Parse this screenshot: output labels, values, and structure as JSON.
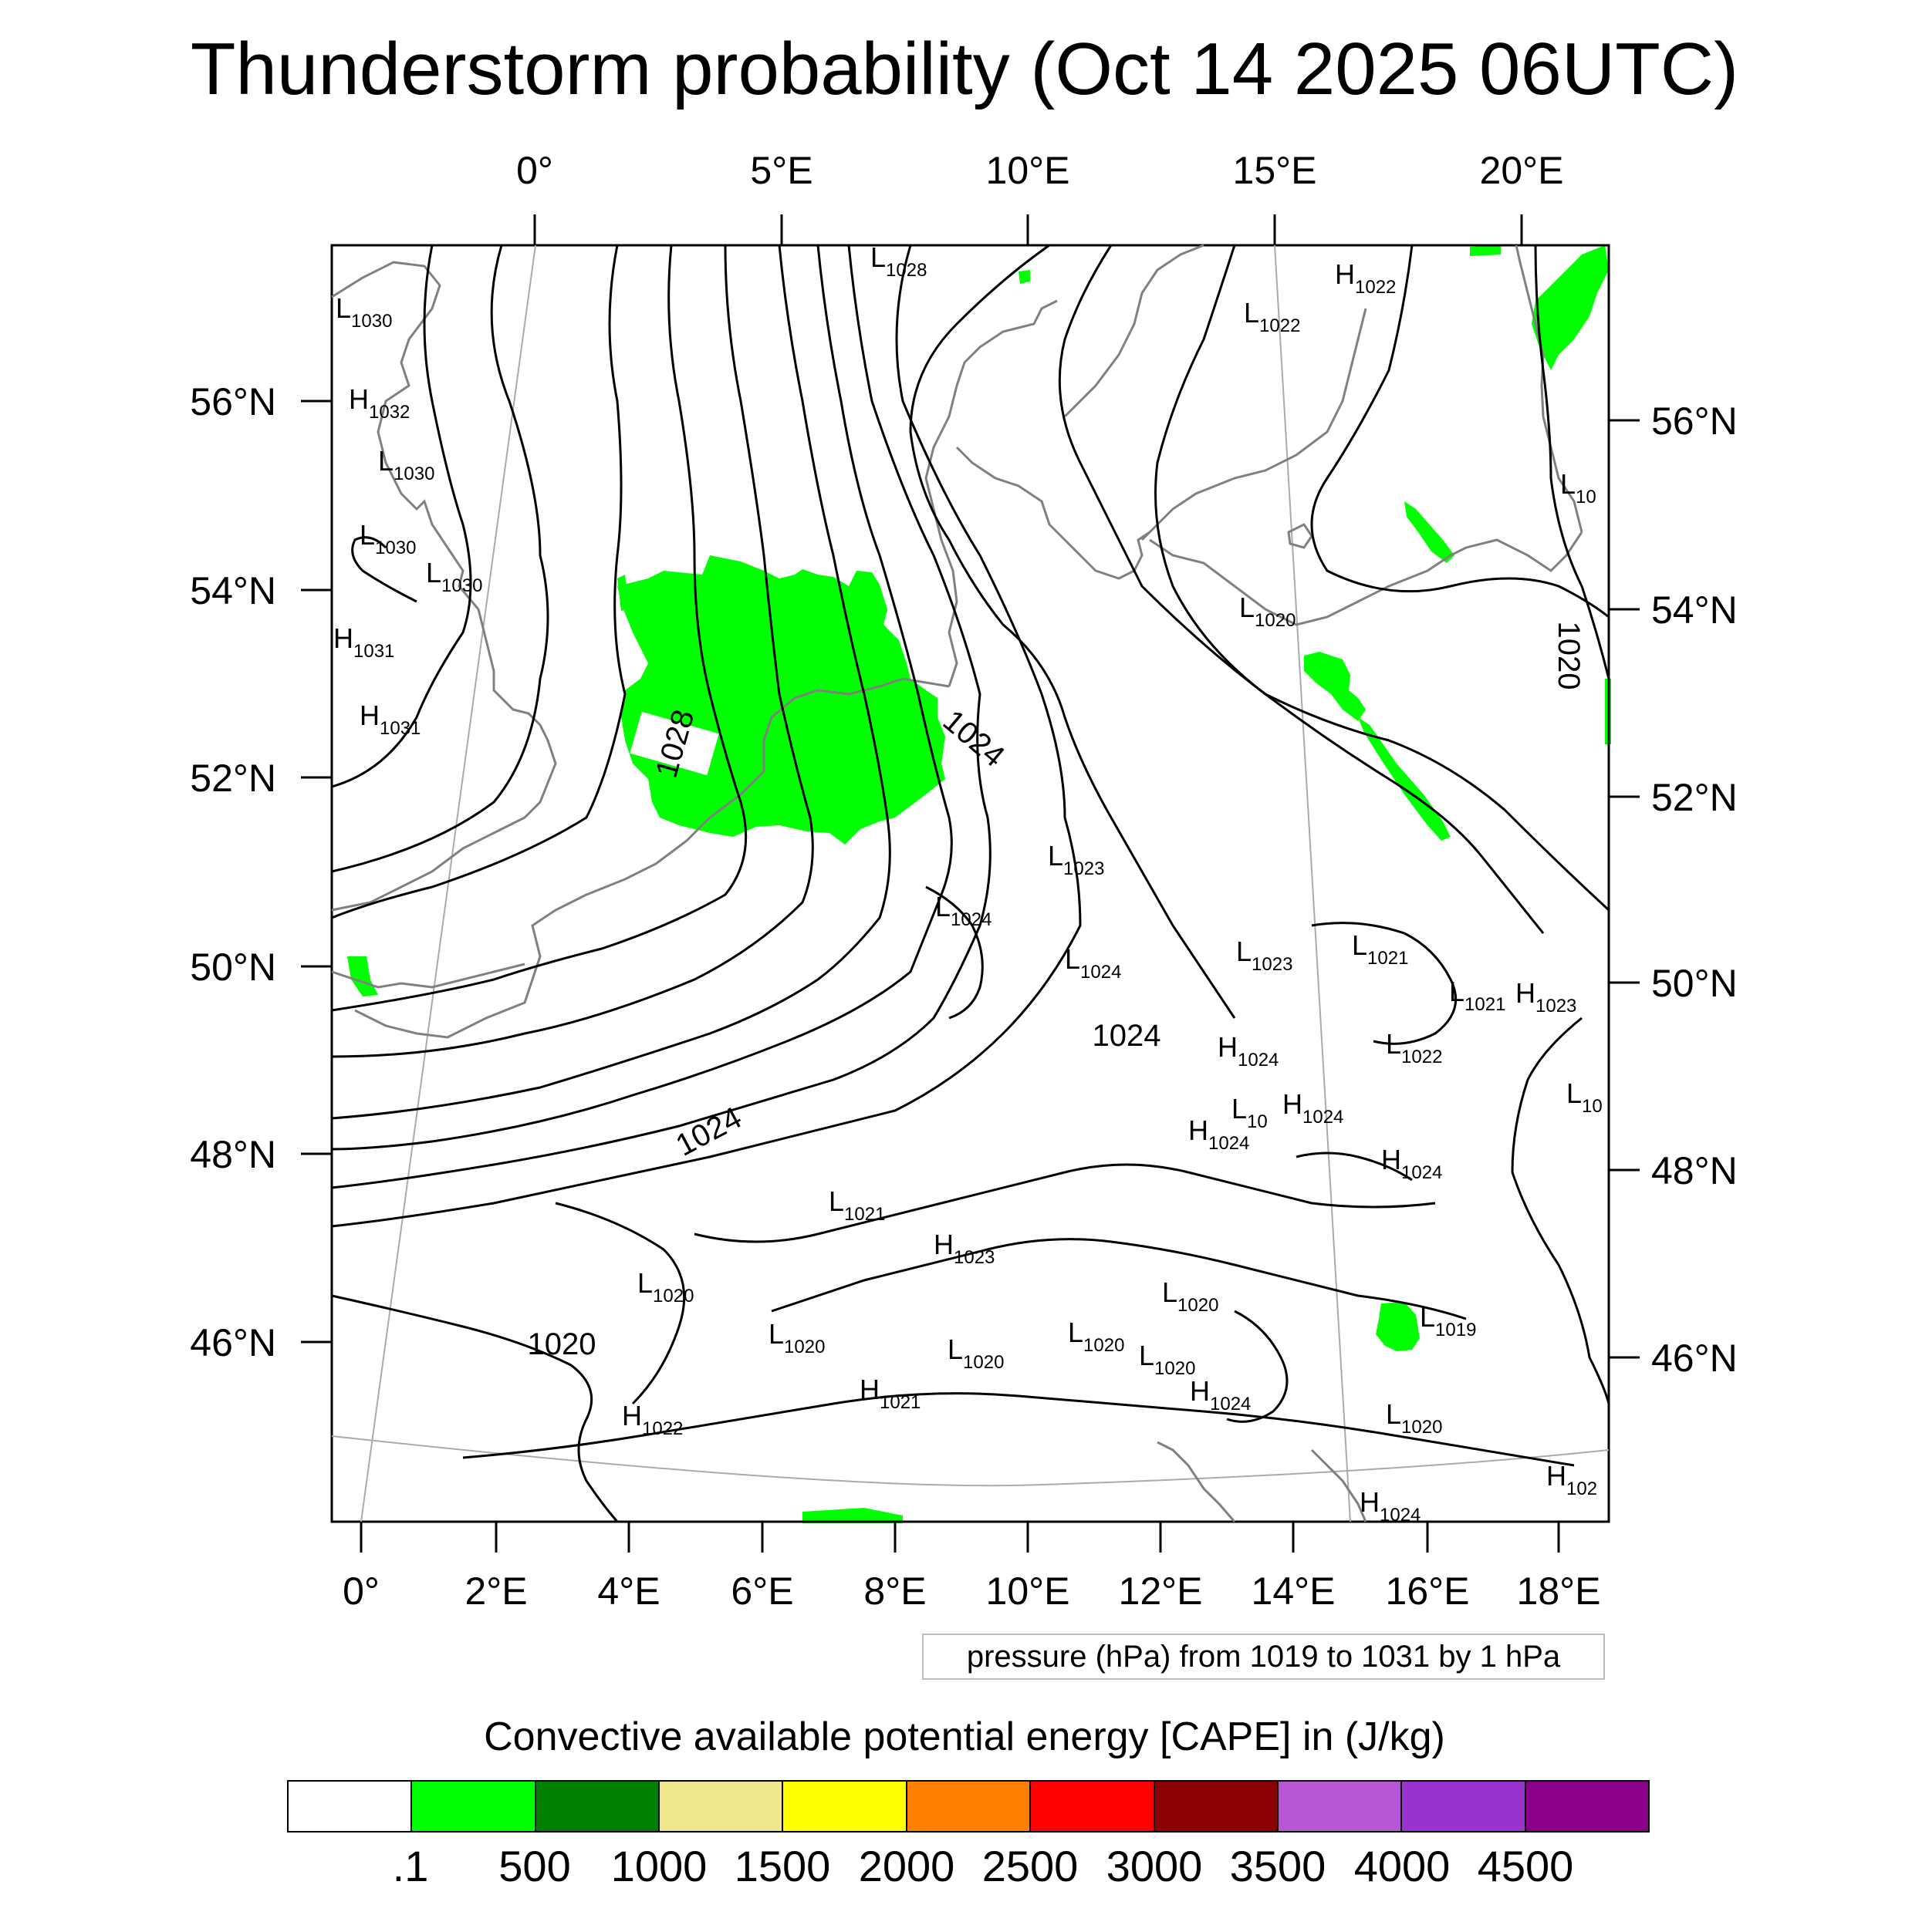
{
  "title": "Thunderstorm probability (Oct 14 2025 06UTC)",
  "top_lon_labels": [
    "0°",
    "5°E",
    "10°E",
    "15°E",
    "20°E"
  ],
  "bottom_lon_labels": [
    "0°",
    "2°E",
    "4°E",
    "6°E",
    "8°E",
    "10°E",
    "12°E",
    "14°E",
    "16°E",
    "18°E"
  ],
  "left_lat_labels": [
    "56°N",
    "54°N",
    "52°N",
    "50°N",
    "48°N",
    "46°N"
  ],
  "right_lat_labels": [
    "56°N",
    "54°N",
    "52°N",
    "50°N",
    "48°N",
    "46°N"
  ],
  "contour_labels": [
    "1028",
    "1024",
    "1024",
    "1024",
    "1020",
    "1020"
  ],
  "pressure_centers": [
    {
      "kind": "L",
      "value": "1030"
    },
    {
      "kind": "H",
      "value": "1032"
    },
    {
      "kind": "L",
      "value": "1030"
    },
    {
      "kind": "L",
      "value": "1030"
    },
    {
      "kind": "L",
      "value": "1030"
    },
    {
      "kind": "H",
      "value": "1031"
    },
    {
      "kind": "H",
      "value": "1031"
    },
    {
      "kind": "L",
      "value": "1028"
    },
    {
      "kind": "H",
      "value": "1022"
    },
    {
      "kind": "L",
      "value": "1022"
    },
    {
      "kind": "L",
      "value": "10"
    },
    {
      "kind": "L",
      "value": "1020"
    },
    {
      "kind": "L",
      "value": "1023"
    },
    {
      "kind": "L",
      "value": "1024"
    },
    {
      "kind": "L",
      "value": "1024"
    },
    {
      "kind": "L",
      "value": "1023"
    },
    {
      "kind": "L",
      "value": "1021"
    },
    {
      "kind": "L",
      "value": "1021"
    },
    {
      "kind": "H",
      "value": "1023"
    },
    {
      "kind": "H",
      "value": "1024"
    },
    {
      "kind": "L",
      "value": "1022"
    },
    {
      "kind": "L",
      "value": "10"
    },
    {
      "kind": "L",
      "value": "10"
    },
    {
      "kind": "H",
      "value": "1024"
    },
    {
      "kind": "H",
      "value": "1024"
    },
    {
      "kind": "H",
      "value": "1024"
    },
    {
      "kind": "L",
      "value": "1021"
    },
    {
      "kind": "H",
      "value": "1023"
    },
    {
      "kind": "L",
      "value": "1020"
    },
    {
      "kind": "L",
      "value": "1020"
    },
    {
      "kind": "L",
      "value": "1020"
    },
    {
      "kind": "L",
      "value": "1020"
    },
    {
      "kind": "L",
      "value": "1020"
    },
    {
      "kind": "L",
      "value": "1020"
    },
    {
      "kind": "H",
      "value": "1024"
    },
    {
      "kind": "L",
      "value": "1019"
    },
    {
      "kind": "H",
      "value": "1022"
    },
    {
      "kind": "H",
      "value": "1021"
    },
    {
      "kind": "H",
      "value": "1024"
    },
    {
      "kind": "L",
      "value": "1020"
    },
    {
      "kind": "H",
      "value": "102"
    }
  ],
  "pressure_note": "pressure (hPa) from 1019 to 1031 by 1 hPa",
  "cape_title": "Convective available potential energy [CAPE] in (J/kg)",
  "colorbar": {
    "colors": [
      "#ffffff",
      "#00ff00",
      "#007f00",
      "#f0e68c",
      "#ffff00",
      "#ff8000",
      "#ff0000",
      "#8b0000",
      "#b856d8",
      "#9a32cd",
      "#8b008b"
    ],
    "labels": [
      ".1",
      "500",
      "1000",
      "1500",
      "2000",
      "2500",
      "3000",
      "3500",
      "4000",
      "4500"
    ]
  },
  "colors": {
    "cape_fill": "#00ff00",
    "isobar": "#000000",
    "coastline": "#808080",
    "graticule": "#aaaaaa"
  }
}
